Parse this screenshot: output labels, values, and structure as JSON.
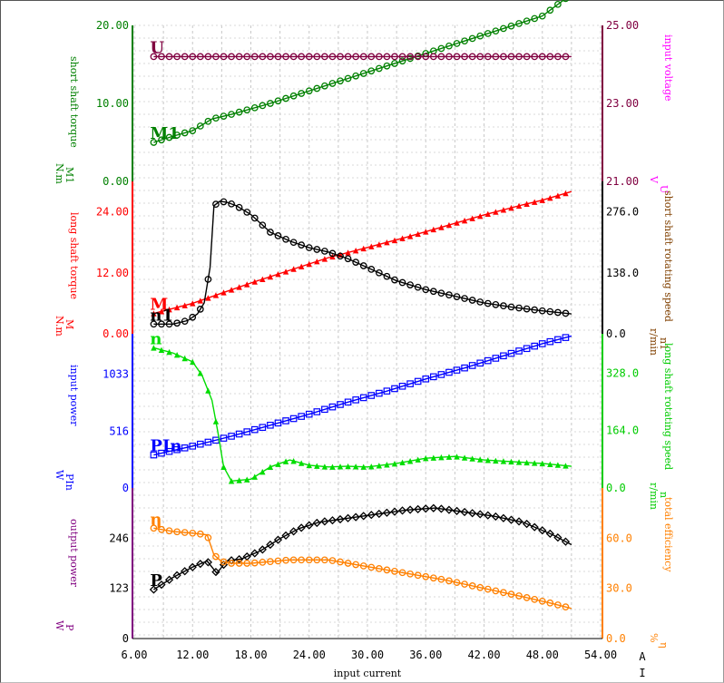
{
  "chart_data": {
    "type": "line",
    "x_axis": {
      "label": "input current",
      "unit_top": "A",
      "unit_bottom": "I",
      "ticks": [
        "6.00",
        "12.00",
        "18.00",
        "24.00",
        "30.00",
        "36.00",
        "42.00",
        "48.00",
        "54.00"
      ],
      "range": [
        6,
        54
      ]
    },
    "panels": [
      {
        "left_axis": {
          "label": "short shaft torque",
          "unit": "N.m",
          "symbol": "M1",
          "color": "#008000",
          "range": [
            0,
            20
          ],
          "ticks": [
            "0.00",
            "10.00",
            "20.00"
          ]
        },
        "right_axis": {
          "label": "input voltage",
          "unit": "V",
          "symbol": "U",
          "color": "#ff00ff",
          "tick_color": "#800040",
          "range": [
            21,
            25
          ],
          "ticks": [
            "21.00",
            "23.00",
            "25.00"
          ]
        },
        "series": [
          {
            "marker_label": "M1",
            "axis": "left",
            "color": "#008000",
            "marker": "circle",
            "x": [
              8,
              10,
              12,
              14,
              16,
              20,
              24,
              28,
              32,
              36,
              40,
              44,
              48,
              51
            ],
            "y": [
              5,
              5.8,
              6.5,
              8,
              8.6,
              10,
              11.6,
              13.2,
              14.8,
              16.4,
              18,
              19.6,
              21.2,
              24
            ]
          },
          {
            "marker_label": "U",
            "axis": "right",
            "color": "#800040",
            "marker": "circle",
            "x": [
              8,
              51
            ],
            "y": [
              24.2,
              24.2
            ]
          }
        ]
      },
      {
        "left_axis": {
          "label": "long shaft torque",
          "unit": "N.m",
          "symbol": "M",
          "color": "#ff0000",
          "range": [
            0,
            30
          ],
          "ticks": [
            "0.00",
            "12.00",
            "24.00"
          ]
        },
        "right_axis": {
          "label": "short shaft rotating speed",
          "unit": "r/min",
          "symbol": "n1",
          "color": "#804000",
          "tick_color": "#000000",
          "range": [
            0,
            345
          ],
          "ticks": [
            "0.0",
            "138.0",
            "276.0"
          ]
        },
        "series": [
          {
            "marker_label": "M",
            "axis": "left",
            "color": "#ff0000",
            "marker": "triangle",
            "x": [
              8,
              12,
              15,
              18,
              22,
              26,
              30,
              34,
              38,
              42,
              46,
              48,
              51
            ],
            "y": [
              4,
              6,
              8,
              10,
              12.5,
              15,
              17,
              19,
              21.2,
              23.4,
              25.4,
              26.3,
              28
            ]
          },
          {
            "marker_label": "n1",
            "axis": "right",
            "color": "#000000",
            "marker": "circle",
            "x": [
              8,
              10,
              11.5,
              12.5,
              13.2,
              13.8,
              14.2,
              14.8,
              15.5,
              16.5,
              18,
              20,
              22,
              24,
              26,
              28,
              30,
              33,
              36,
              39,
              42,
              45,
              48,
              51
            ],
            "y": [
              22,
              22,
              30,
              45,
              70,
              150,
              290,
              300,
              298,
              290,
              270,
              230,
              210,
              195,
              185,
              170,
              150,
              120,
              100,
              85,
              70,
              60,
              52,
              45
            ]
          }
        ]
      },
      {
        "left_axis": {
          "label": "input power",
          "unit": "W",
          "symbol": "PIn",
          "color": "#0000ff",
          "range": [
            0,
            1400
          ],
          "ticks": [
            "0",
            "516",
            "1033"
          ]
        },
        "right_axis": {
          "label": "long shaft rotating speed",
          "unit": "r/min",
          "symbol": "n",
          "color": "#00cc00",
          "tick_color": "#00cc00",
          "range": [
            0,
            440
          ],
          "ticks": [
            "0.0",
            "164.0",
            "328.0"
          ]
        },
        "series": [
          {
            "marker_label": "PIn",
            "axis": "left",
            "color": "#0000ff",
            "marker": "square",
            "x": [
              8,
              12,
              16,
              20,
              24,
              28,
              32,
              36,
              40,
              44,
              48,
              51
            ],
            "y": [
              300,
              380,
              470,
              570,
              670,
              780,
              880,
              990,
              1090,
              1200,
              1310,
              1380
            ]
          },
          {
            "marker_label": "n",
            "axis": "right",
            "color": "#00dd00",
            "marker": "triangle",
            "x": [
              8,
              10,
              12,
              13,
              14,
              14.6,
              15.2,
              16,
              18,
              20,
              22,
              24,
              26,
              28,
              30,
              33,
              36,
              39,
              42,
              45,
              48,
              51
            ],
            "y": [
              400,
              385,
              360,
              320,
              250,
              160,
              60,
              20,
              25,
              60,
              80,
              65,
              60,
              62,
              60,
              70,
              85,
              90,
              80,
              75,
              70,
              62
            ]
          }
        ]
      },
      {
        "left_axis": {
          "label": "output power",
          "unit": "W",
          "symbol": "P",
          "color": "#800080",
          "tick_color": "#000000",
          "range": [
            0,
            369
          ],
          "ticks": [
            "0",
            "123",
            "246"
          ]
        },
        "right_axis": {
          "label": "total efficiency",
          "unit": "%",
          "symbol": "η",
          "color": "#ff8000",
          "tick_color": "#ff8000",
          "range": [
            0,
            90
          ],
          "ticks": [
            "0.0",
            "30.0",
            "60.0"
          ]
        },
        "series": [
          {
            "marker_label": "P",
            "axis": "left",
            "color": "#000000",
            "marker": "diamond",
            "x": [
              8,
              10,
              12,
              13.5,
              14.5,
              15.5,
              17,
              19,
              21,
              23,
              25,
              28,
              31,
              34,
              37,
              40,
              43,
              46,
              49,
              51
            ],
            "y": [
              120,
              150,
              175,
              190,
              160,
              190,
              195,
              215,
              245,
              270,
              285,
              295,
              305,
              315,
              320,
              310,
              300,
              285,
              255,
              230
            ]
          },
          {
            "marker_label": "η",
            "axis": "right",
            "color": "#ff8000",
            "marker": "circle",
            "x": [
              8,
              10,
              12,
              13.5,
              14.2,
              15,
              16,
              18,
              20,
              22,
              24,
              26,
              28,
              30,
              34,
              38,
              42,
              46,
              49,
              51
            ],
            "y": [
              66,
              64,
              63,
              62,
              50,
              46,
              45,
              45,
              46,
              47,
              47,
              47,
              45,
              43,
              39,
              35,
              30,
              25,
              21,
              18
            ]
          }
        ]
      }
    ]
  }
}
